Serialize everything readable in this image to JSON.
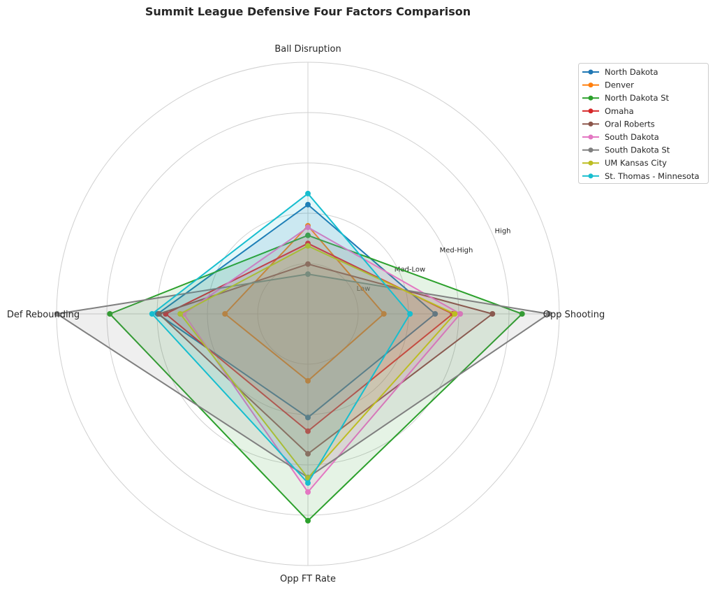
{
  "chart_data": {
    "type": "radar",
    "title": "Summit League Defensive Four Factors Comparison",
    "axes": [
      "Ball Disruption",
      "Opp Shooting",
      "Opp FT Rate",
      "Def Rebounding"
    ],
    "rlim": [
      0,
      5
    ],
    "ring_ticks": [
      1,
      2,
      3,
      4,
      5
    ],
    "ring_labels": [
      "Low",
      "Med-Low",
      "Med-High",
      "High"
    ],
    "legend_position": "top-right",
    "series": [
      {
        "name": "North Dakota",
        "color": "#1f77b4",
        "values": [
          2.17,
          2.53,
          2.06,
          2.99
        ]
      },
      {
        "name": "Denver",
        "color": "#ff7f0e",
        "values": [
          1.75,
          1.51,
          1.33,
          1.65
        ]
      },
      {
        "name": "North Dakota St",
        "color": "#2ca02c",
        "values": [
          1.56,
          4.26,
          4.11,
          3.94
        ]
      },
      {
        "name": "Omaha",
        "color": "#d62728",
        "values": [
          1.4,
          2.88,
          2.33,
          2.83
        ]
      },
      {
        "name": "Oral Roberts",
        "color": "#8c564b",
        "values": [
          0.99,
          3.67,
          2.78,
          2.96
        ]
      },
      {
        "name": "South Dakota",
        "color": "#e377c2",
        "values": [
          1.72,
          3.03,
          3.54,
          2.47
        ]
      },
      {
        "name": "South Dakota St",
        "color": "#7f7f7f",
        "values": [
          0.79,
          4.79,
          3.25,
          4.99
        ]
      },
      {
        "name": "UM Kansas City",
        "color": "#bcbd22",
        "values": [
          1.35,
          2.92,
          3.26,
          2.54
        ]
      },
      {
        "name": "St. Thomas - Minnesota",
        "color": "#17becf",
        "values": [
          2.39,
          2.03,
          3.36,
          3.1
        ]
      }
    ]
  }
}
